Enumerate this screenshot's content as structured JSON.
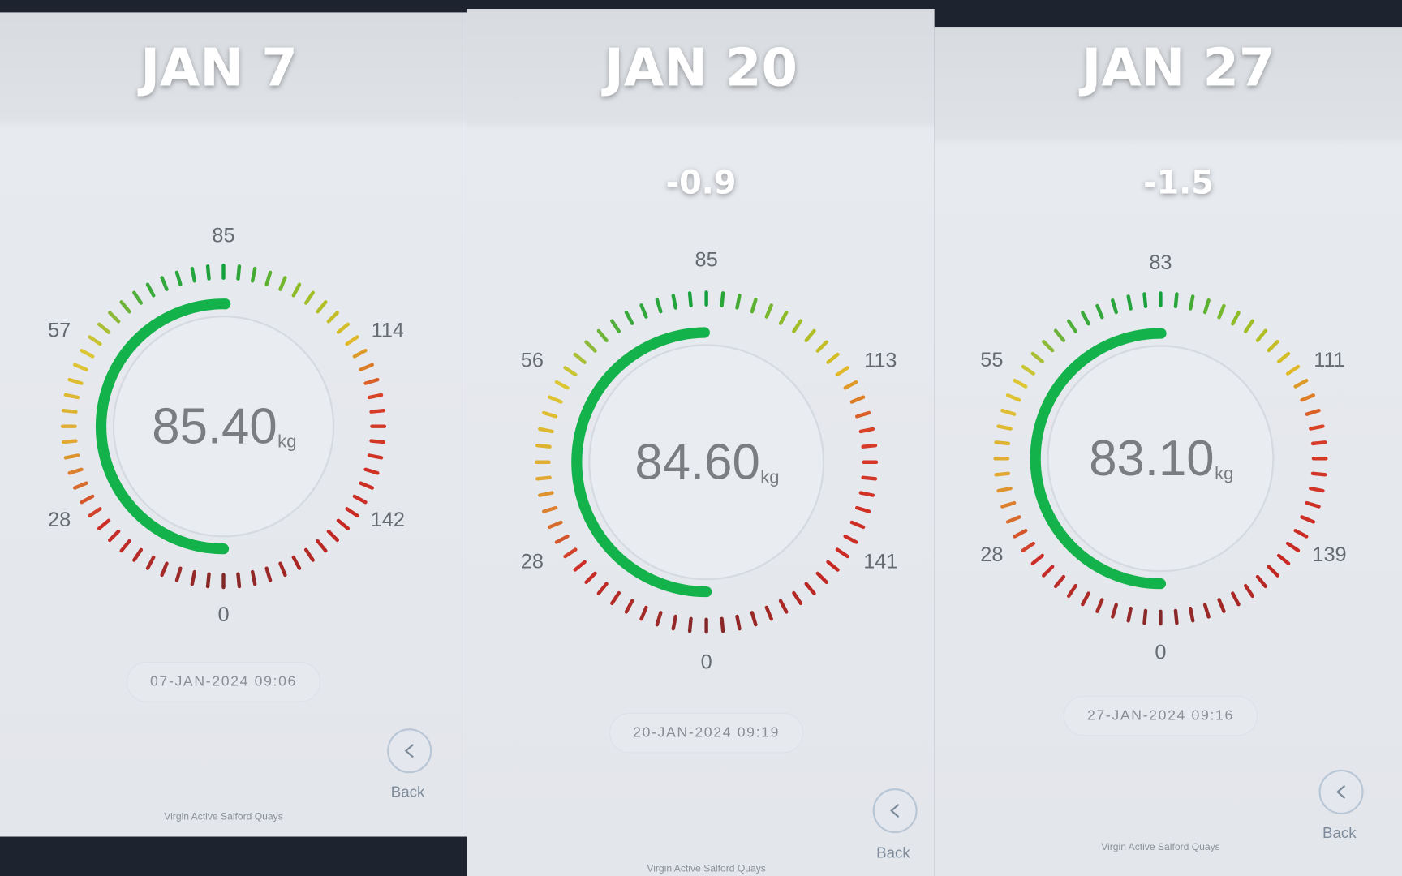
{
  "panels": [
    {
      "title": "JAN 7",
      "scale": [
        0,
        28,
        57,
        85,
        114,
        142
      ],
      "reading": {
        "value": 85.4,
        "label": "85.40"
      },
      "unit": "kg",
      "date": "07-JAN-2024 09:06",
      "back": "Back",
      "footer": "Virgin Active Salford Quays"
    },
    {
      "title": "JAN 20",
      "delta": "-0.9",
      "scale": [
        0,
        28,
        56,
        85,
        113,
        141
      ],
      "reading": {
        "value": 84.6,
        "label": "84.60"
      },
      "unit": "kg",
      "date": "20-JAN-2024 09:19",
      "back": "Back",
      "footer": "Virgin Active Salford Quays"
    },
    {
      "title": "JAN 27",
      "delta": "-1.5",
      "scale": [
        0,
        28,
        55,
        83,
        111,
        139
      ],
      "reading": {
        "value": 83.1,
        "label": "83.10"
      },
      "unit": "kg",
      "date": "27-JAN-2024 09:16",
      "back": "Back",
      "footer": "Virgin Active Salford Quays"
    }
  ]
}
